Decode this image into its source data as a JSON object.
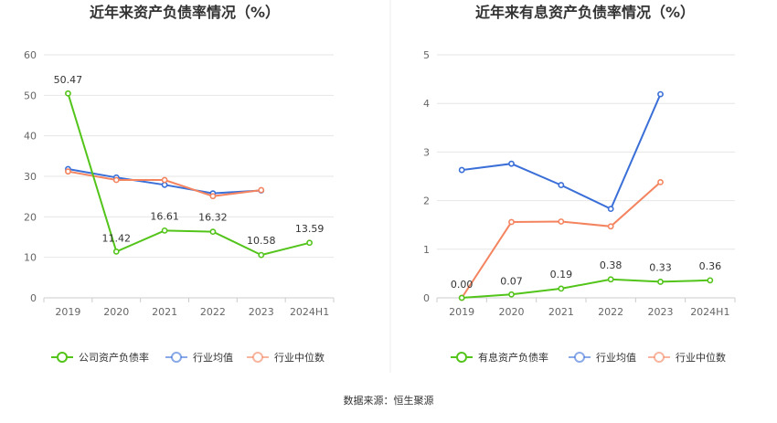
{
  "source_text": "数据来源：恒生聚源",
  "colors": {
    "company": "#52c41a",
    "average": "#3a6fd8",
    "median": "#f4845f",
    "grid": "#e6e6e6",
    "axis": "#cccccc"
  },
  "chart_data": [
    {
      "type": "line",
      "title": "近年来资产负债率情况（%）",
      "categories": [
        "2019",
        "2020",
        "2021",
        "2022",
        "2023",
        "2024H1"
      ],
      "ylim": [
        0,
        60
      ],
      "yticks": [
        0,
        10,
        20,
        30,
        40,
        50,
        60
      ],
      "grid": true,
      "legend_position": "bottom",
      "series": [
        {
          "name": "公司资产负债率",
          "color_key": "company",
          "values": [
            50.47,
            11.42,
            16.61,
            16.32,
            10.58,
            13.59
          ],
          "labels": [
            "50.47",
            "11.42",
            "16.61",
            "16.32",
            "10.58",
            "13.59"
          ]
        },
        {
          "name": "行业均值",
          "color_key": "average",
          "values": [
            31.8,
            29.7,
            27.9,
            25.8,
            26.5,
            null
          ]
        },
        {
          "name": "行业中位数",
          "color_key": "median",
          "values": [
            31.2,
            29.1,
            29.1,
            25.1,
            26.6,
            null
          ]
        }
      ]
    },
    {
      "type": "line",
      "title": "近年来有息资产负债率情况（%）",
      "categories": [
        "2019",
        "2020",
        "2021",
        "2022",
        "2023",
        "2024H1"
      ],
      "ylim": [
        0,
        5
      ],
      "yticks": [
        0,
        1,
        2,
        3,
        4,
        5
      ],
      "grid": true,
      "legend_position": "bottom",
      "series": [
        {
          "name": "有息资产负债率",
          "color_key": "company",
          "values": [
            0.0,
            0.07,
            0.19,
            0.38,
            0.33,
            0.36
          ],
          "labels": [
            "0.00",
            "0.07",
            "0.19",
            "0.38",
            "0.33",
            "0.36"
          ]
        },
        {
          "name": "行业均值",
          "color_key": "average",
          "values": [
            2.63,
            2.76,
            2.32,
            1.83,
            4.19,
            null
          ]
        },
        {
          "name": "行业中位数",
          "color_key": "median",
          "values": [
            0.0,
            1.56,
            1.57,
            1.47,
            2.38,
            null
          ]
        }
      ]
    }
  ]
}
